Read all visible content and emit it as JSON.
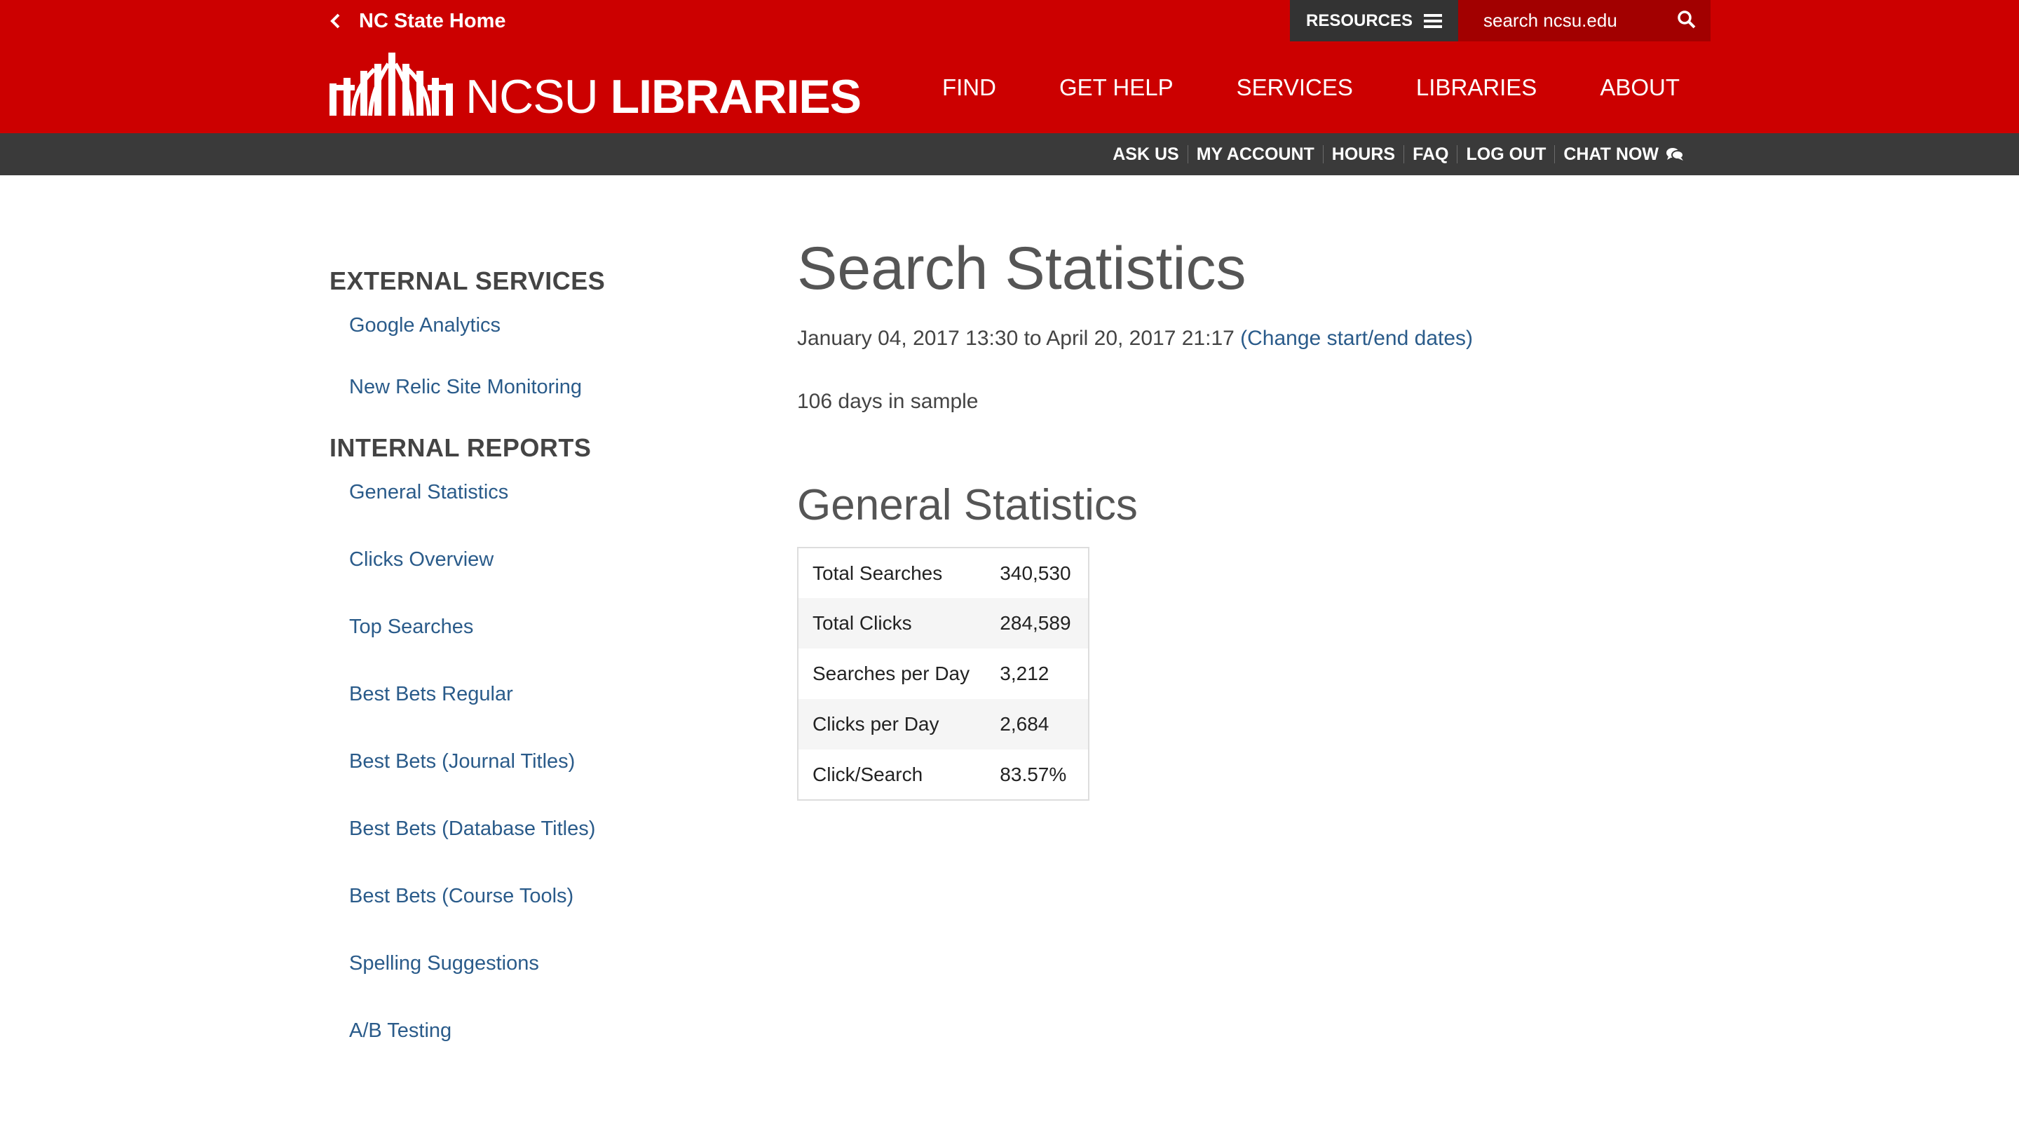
{
  "header": {
    "home_link": "NC State Home",
    "resources_label": "RESOURCES",
    "search_placeholder": "search ncsu.edu",
    "logo_light": "NCSU ",
    "logo_bold": "LIBRARIES",
    "nav": [
      "FIND",
      "GET HELP",
      "SERVICES",
      "LIBRARIES",
      "ABOUT"
    ],
    "util": [
      "ASK US",
      "MY ACCOUNT",
      "HOURS",
      "FAQ",
      "LOG OUT",
      "CHAT NOW"
    ],
    "brand_color": "#cc0000",
    "util_bar_color": "#3a3a3a"
  },
  "sidebar": {
    "external_heading": "EXTERNAL SERVICES",
    "external_links": [
      "Google Analytics",
      "New Relic Site Monitoring"
    ],
    "internal_heading": "INTERNAL REPORTS",
    "internal_links": [
      "General Statistics",
      "Clicks Overview",
      "Top Searches",
      "Best Bets Regular",
      "Best Bets (Journal Titles)",
      "Best Bets (Database Titles)",
      "Best Bets (Course Tools)",
      "Spelling Suggestions",
      "A/B Testing"
    ]
  },
  "main": {
    "title": "Search Statistics",
    "date_range": "January 04, 2017 13:30 to April 20, 2017 21:17 ",
    "change_dates_link": "(Change start/end dates)",
    "days_in_sample": "106 days in sample",
    "section_title": "General Statistics",
    "stats": [
      {
        "label": "Total Searches",
        "value": "340,530"
      },
      {
        "label": "Total Clicks",
        "value": "284,589"
      },
      {
        "label": "Searches per Day",
        "value": "3,212"
      },
      {
        "label": "Clicks per Day",
        "value": "2,684"
      },
      {
        "label": "Click/Search",
        "value": "83.57%"
      }
    ]
  }
}
